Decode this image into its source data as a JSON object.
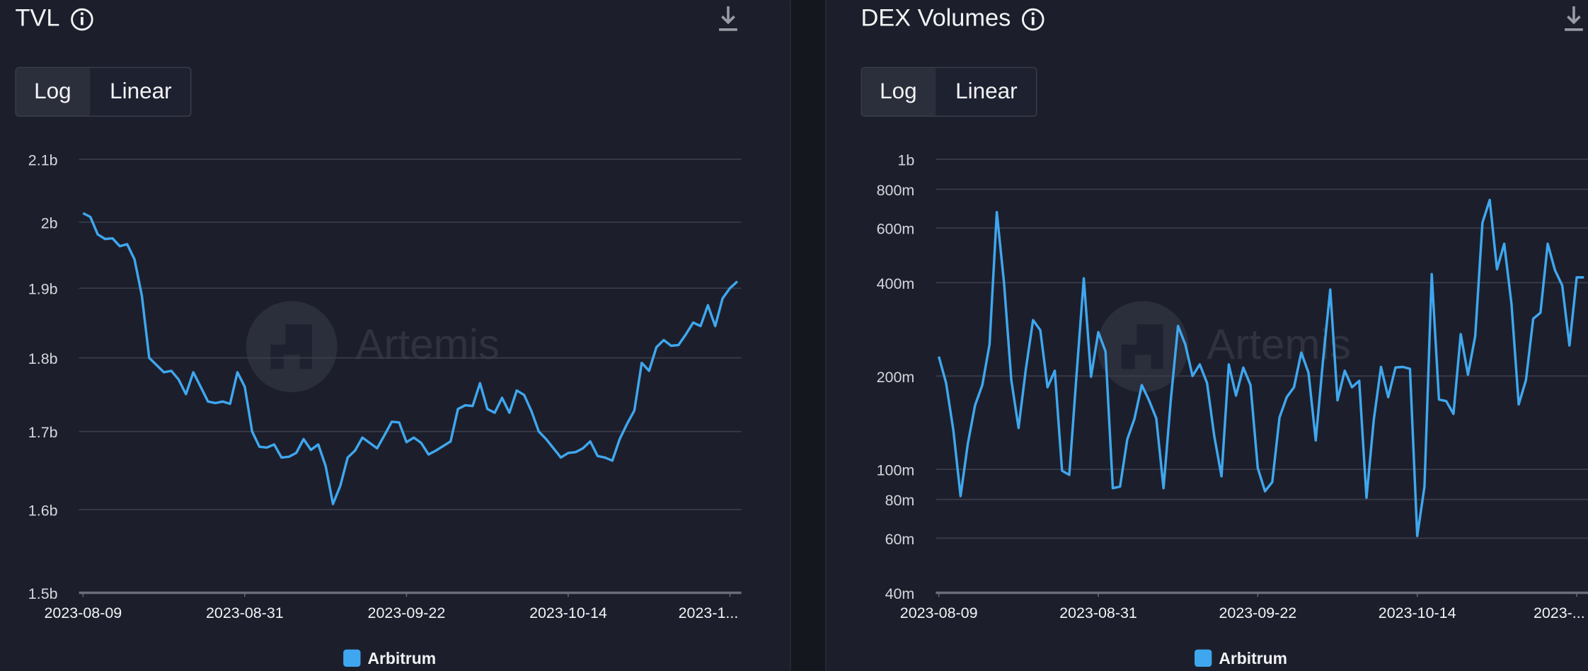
{
  "chart_data": [
    {
      "type": "line",
      "title": "TVL",
      "scale_options": [
        "Log",
        "Linear"
      ],
      "watermark": "Artemis",
      "log": true,
      "grid": true,
      "x": [
        "2023-08-09",
        "2023-08-10",
        "2023-08-11",
        "2023-08-12",
        "2023-08-13",
        "2023-08-14",
        "2023-08-15",
        "2023-08-16",
        "2023-08-17",
        "2023-08-18",
        "2023-08-19",
        "2023-08-20",
        "2023-08-21",
        "2023-08-22",
        "2023-08-23",
        "2023-08-24",
        "2023-08-25",
        "2023-08-26",
        "2023-08-27",
        "2023-08-28",
        "2023-08-29",
        "2023-08-30",
        "2023-08-31",
        "2023-09-01",
        "2023-09-02",
        "2023-09-03",
        "2023-09-04",
        "2023-09-05",
        "2023-09-06",
        "2023-09-07",
        "2023-09-08",
        "2023-09-09",
        "2023-09-10",
        "2023-09-11",
        "2023-09-12",
        "2023-09-13",
        "2023-09-14",
        "2023-09-15",
        "2023-09-16",
        "2023-09-17",
        "2023-09-18",
        "2023-09-19",
        "2023-09-20",
        "2023-09-21",
        "2023-09-22",
        "2023-09-23",
        "2023-09-24",
        "2023-09-25",
        "2023-09-26",
        "2023-09-27",
        "2023-09-28",
        "2023-09-29",
        "2023-09-30",
        "2023-10-01",
        "2023-10-02",
        "2023-10-03",
        "2023-10-04",
        "2023-10-05",
        "2023-10-06",
        "2023-10-07",
        "2023-10-08",
        "2023-10-09",
        "2023-10-10",
        "2023-10-11",
        "2023-10-12",
        "2023-10-13",
        "2023-10-14",
        "2023-10-15",
        "2023-10-16",
        "2023-10-17",
        "2023-10-18",
        "2023-10-19",
        "2023-10-20",
        "2023-10-21",
        "2023-10-22",
        "2023-10-23",
        "2023-10-24",
        "2023-10-25",
        "2023-10-26",
        "2023-10-27",
        "2023-10-28",
        "2023-10-29",
        "2023-10-30",
        "2023-10-31",
        "2023-11-01",
        "2023-11-02",
        "2023-11-03",
        "2023-11-04",
        "2023-11-05",
        "2023-11-06"
      ],
      "series": [
        {
          "name": "Arbitrum",
          "color": "#3fa7ef",
          "values": [
            2014000000,
            2008000000,
            1981000000,
            1974000000,
            1975000000,
            1963000000,
            1966000000,
            1943000000,
            1889000000,
            1800000000,
            1790000000,
            1780000000,
            1782000000,
            1770000000,
            1750000000,
            1780000000,
            1760000000,
            1740000000,
            1738000000,
            1740000000,
            1737000000,
            1780000000,
            1760000000,
            1700000000,
            1680000000,
            1679000000,
            1683000000,
            1666000000,
            1667000000,
            1672000000,
            1690000000,
            1676000000,
            1683000000,
            1655000000,
            1607000000,
            1630000000,
            1666000000,
            1675000000,
            1692000000,
            1685000000,
            1678000000,
            1695000000,
            1713000000,
            1712000000,
            1686000000,
            1692000000,
            1685000000,
            1670000000,
            1675000000,
            1681000000,
            1687000000,
            1730000000,
            1735000000,
            1734000000,
            1765000000,
            1730000000,
            1725000000,
            1745000000,
            1725000000,
            1755000000,
            1749000000,
            1727000000,
            1700000000,
            1690000000,
            1678000000,
            1666000000,
            1672000000,
            1673000000,
            1678000000,
            1687000000,
            1668000000,
            1666000000,
            1662000000,
            1690000000,
            1710000000,
            1728000000,
            1793000000,
            1782000000,
            1815000000,
            1825000000,
            1817000000,
            1818000000,
            1833000000,
            1850000000,
            1845000000,
            1875000000,
            1845000000,
            1885000000,
            1900000000,
            1910000000
          ]
        }
      ],
      "xlim": [
        "2023-08-09",
        "2023-11-06"
      ],
      "xticks": [
        "2023-08-09",
        "2023-08-31",
        "2023-09-22",
        "2023-10-14",
        {
          "value": "2023-11-05",
          "label": "2023-1..."
        }
      ],
      "ylim": [
        1500000000,
        2100000000
      ],
      "yticks": [
        {
          "value": 1500000000,
          "label": "1.5b"
        },
        {
          "value": 1600000000,
          "label": "1.6b"
        },
        {
          "value": 1700000000,
          "label": "1.7b"
        },
        {
          "value": 1800000000,
          "label": "1.8b"
        },
        {
          "value": 1900000000,
          "label": "1.9b"
        },
        {
          "value": 2000000000,
          "label": "2b"
        },
        {
          "value": 2100000000,
          "label": "2.1b"
        }
      ]
    },
    {
      "type": "line",
      "title": "DEX Volumes",
      "scale_options": [
        "Log",
        "Linear"
      ],
      "watermark": "Artemis",
      "log": true,
      "grid": true,
      "x": [
        "2023-08-09",
        "2023-08-10",
        "2023-08-11",
        "2023-08-12",
        "2023-08-13",
        "2023-08-14",
        "2023-08-15",
        "2023-08-16",
        "2023-08-17",
        "2023-08-18",
        "2023-08-19",
        "2023-08-20",
        "2023-08-21",
        "2023-08-22",
        "2023-08-23",
        "2023-08-24",
        "2023-08-25",
        "2023-08-26",
        "2023-08-27",
        "2023-08-28",
        "2023-08-29",
        "2023-08-30",
        "2023-08-31",
        "2023-09-01",
        "2023-09-02",
        "2023-09-03",
        "2023-09-04",
        "2023-09-05",
        "2023-09-06",
        "2023-09-07",
        "2023-09-08",
        "2023-09-09",
        "2023-09-10",
        "2023-09-11",
        "2023-09-12",
        "2023-09-13",
        "2023-09-14",
        "2023-09-15",
        "2023-09-16",
        "2023-09-17",
        "2023-09-18",
        "2023-09-19",
        "2023-09-20",
        "2023-09-21",
        "2023-09-22",
        "2023-09-23",
        "2023-09-24",
        "2023-09-25",
        "2023-09-26",
        "2023-09-27",
        "2023-09-28",
        "2023-09-29",
        "2023-09-30",
        "2023-10-01",
        "2023-10-02",
        "2023-10-03",
        "2023-10-04",
        "2023-10-05",
        "2023-10-06",
        "2023-10-07",
        "2023-10-08",
        "2023-10-09",
        "2023-10-10",
        "2023-10-11",
        "2023-10-12",
        "2023-10-13",
        "2023-10-14",
        "2023-10-15",
        "2023-10-16",
        "2023-10-17",
        "2023-10-18",
        "2023-10-19",
        "2023-10-20",
        "2023-10-21",
        "2023-10-22",
        "2023-10-23",
        "2023-10-24",
        "2023-10-25",
        "2023-10-26",
        "2023-10-27",
        "2023-10-28",
        "2023-10-29",
        "2023-10-30",
        "2023-10-31",
        "2023-11-01",
        "2023-11-02",
        "2023-11-03",
        "2023-11-04",
        "2023-11-05",
        "2023-11-06"
      ],
      "series": [
        {
          "name": "Arbitrum",
          "color": "#3fa7ef",
          "values": [
            231000000,
            190000000,
            134000000,
            82000000,
            121000000,
            161000000,
            187000000,
            253000000,
            675000000,
            398000000,
            194000000,
            136000000,
            210000000,
            303000000,
            281000000,
            184000000,
            208000000,
            99000000,
            96000000,
            202000000,
            413000000,
            199000000,
            277000000,
            240000000,
            87000000,
            88000000,
            125000000,
            146000000,
            187000000,
            167000000,
            146000000,
            87000000,
            167000000,
            290000000,
            253000000,
            200000000,
            218000000,
            190000000,
            128000000,
            95000000,
            218000000,
            173000000,
            213000000,
            187000000,
            101000000,
            85000000,
            91000000,
            147000000,
            171000000,
            184000000,
            238000000,
            205000000,
            124000000,
            224000000,
            380000000,
            167000000,
            208000000,
            184000000,
            193000000,
            81000000,
            144000000,
            214000000,
            171000000,
            213000000,
            214000000,
            211000000,
            61000000,
            88000000,
            426000000,
            168000000,
            166000000,
            151000000,
            273000000,
            202000000,
            269000000,
            625000000,
            739000000,
            442000000,
            534000000,
            342000000,
            162000000,
            194000000,
            306000000,
            320000000,
            534000000,
            439000000,
            392000000,
            251000000,
            416000000,
            416000000
          ]
        }
      ],
      "xlim": [
        "2023-08-09",
        "2023-11-06"
      ],
      "xticks": [
        "2023-08-09",
        "2023-08-31",
        "2023-09-22",
        "2023-10-14",
        {
          "value": "2023-11-05",
          "label": "2023-..."
        }
      ],
      "ylim": [
        40000000,
        1000000000
      ],
      "yticks": [
        {
          "value": 40000000,
          "label": "40m"
        },
        {
          "value": 60000000,
          "label": "60m"
        },
        {
          "value": 80000000,
          "label": "80m"
        },
        {
          "value": 100000000,
          "label": "100m"
        },
        {
          "value": 200000000,
          "label": "200m"
        },
        {
          "value": 400000000,
          "label": "400m"
        },
        {
          "value": 600000000,
          "label": "600m"
        },
        {
          "value": 800000000,
          "label": "800m"
        },
        {
          "value": 1000000000,
          "label": "1b"
        }
      ]
    }
  ]
}
